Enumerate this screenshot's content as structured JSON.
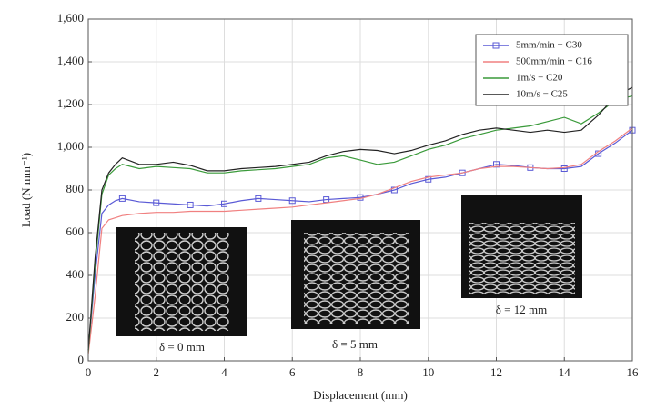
{
  "chart_data": {
    "type": "line",
    "x_label": "Displacement (mm)",
    "y_label": "Load (N mm⁻¹)",
    "x": [
      0,
      0.2,
      0.4,
      0.6,
      0.8,
      1,
      1.5,
      2,
      2.5,
      3,
      3.5,
      4,
      4.5,
      5,
      5.5,
      6,
      6.5,
      7,
      7.5,
      8,
      8.5,
      9,
      9.5,
      10,
      10.5,
      11,
      11.5,
      12,
      12.5,
      13,
      13.5,
      14,
      14.5,
      15,
      15.5,
      16
    ],
    "series": [
      {
        "name": "5mm/min − C30",
        "color": "#5a5ad6",
        "marker": "square",
        "values": [
          50,
          400,
          690,
          730,
          750,
          760,
          745,
          740,
          735,
          730,
          725,
          735,
          750,
          760,
          755,
          750,
          745,
          755,
          760,
          765,
          780,
          800,
          830,
          850,
          860,
          880,
          900,
          920,
          915,
          905,
          900,
          900,
          910,
          970,
          1020,
          1080
        ]
      },
      {
        "name": "500mm/min − C16",
        "color": "#f08080",
        "values": [
          30,
          300,
          620,
          660,
          670,
          680,
          690,
          695,
          695,
          700,
          700,
          700,
          705,
          710,
          715,
          720,
          730,
          740,
          750,
          760,
          780,
          810,
          840,
          860,
          870,
          880,
          900,
          910,
          910,
          905,
          900,
          905,
          920,
          980,
          1030,
          1090
        ]
      },
      {
        "name": "1m/s − C20",
        "color": "#3a9a3a",
        "values": [
          40,
          450,
          780,
          870,
          900,
          920,
          900,
          910,
          905,
          900,
          880,
          880,
          890,
          895,
          900,
          910,
          920,
          950,
          960,
          940,
          920,
          930,
          960,
          990,
          1010,
          1040,
          1060,
          1080,
          1090,
          1100,
          1120,
          1140,
          1110,
          1160,
          1220,
          1240
        ]
      },
      {
        "name": "10m/s − C25",
        "color": "#222222",
        "values": [
          50,
          480,
          800,
          880,
          920,
          950,
          920,
          920,
          930,
          915,
          890,
          890,
          900,
          905,
          910,
          920,
          930,
          960,
          980,
          990,
          985,
          970,
          985,
          1010,
          1030,
          1060,
          1080,
          1090,
          1080,
          1070,
          1080,
          1070,
          1080,
          1150,
          1240,
          1280
        ]
      }
    ],
    "xlim": [
      0,
      16
    ],
    "xticks": [
      0,
      2,
      4,
      6,
      8,
      10,
      12,
      14,
      16
    ],
    "ylim": [
      0,
      1600
    ],
    "yticks": [
      0,
      200,
      400,
      600,
      800,
      {
        "value": 1000,
        "label": "1,000"
      },
      {
        "value": 1200,
        "label": "1,200"
      },
      {
        "value": 1400,
        "label": "1,400"
      },
      {
        "value": 1600,
        "label": "1,600"
      }
    ],
    "grid": true,
    "legend": "upper-right",
    "annotations": [
      "δ = 0 mm",
      "δ = 5 mm",
      "δ = 12 mm"
    ]
  }
}
